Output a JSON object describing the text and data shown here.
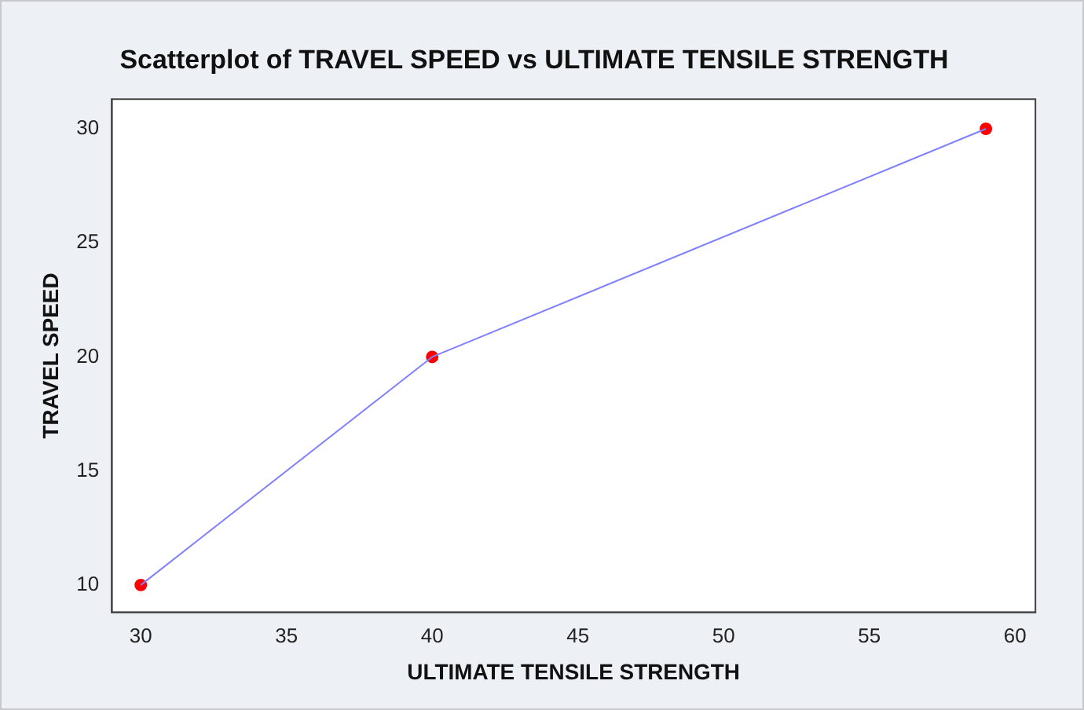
{
  "chart_data": {
    "type": "scatter",
    "title": "Scatterplot of TRAVEL SPEED vs ULTIMATE TENSILE STRENGTH",
    "xlabel": "ULTIMATE TENSILE STRENGTH",
    "ylabel": "TRAVEL SPEED",
    "x": [
      30,
      40,
      59
    ],
    "series": [
      {
        "type": "line",
        "color": "#8080ff",
        "values": [
          10,
          20,
          30
        ],
        "marker": "none"
      },
      {
        "color": "#ff0000",
        "values": [
          10,
          20,
          30
        ]
      }
    ],
    "marker": "circle",
    "xlim": [
      29,
      60.7
    ],
    "xticks": [
      30,
      35,
      40,
      45,
      50,
      55,
      60
    ],
    "ylim": [
      8.8,
      31.3
    ],
    "yticks": [
      10,
      15,
      20,
      25,
      30
    ],
    "grid": false,
    "legend": false
  }
}
